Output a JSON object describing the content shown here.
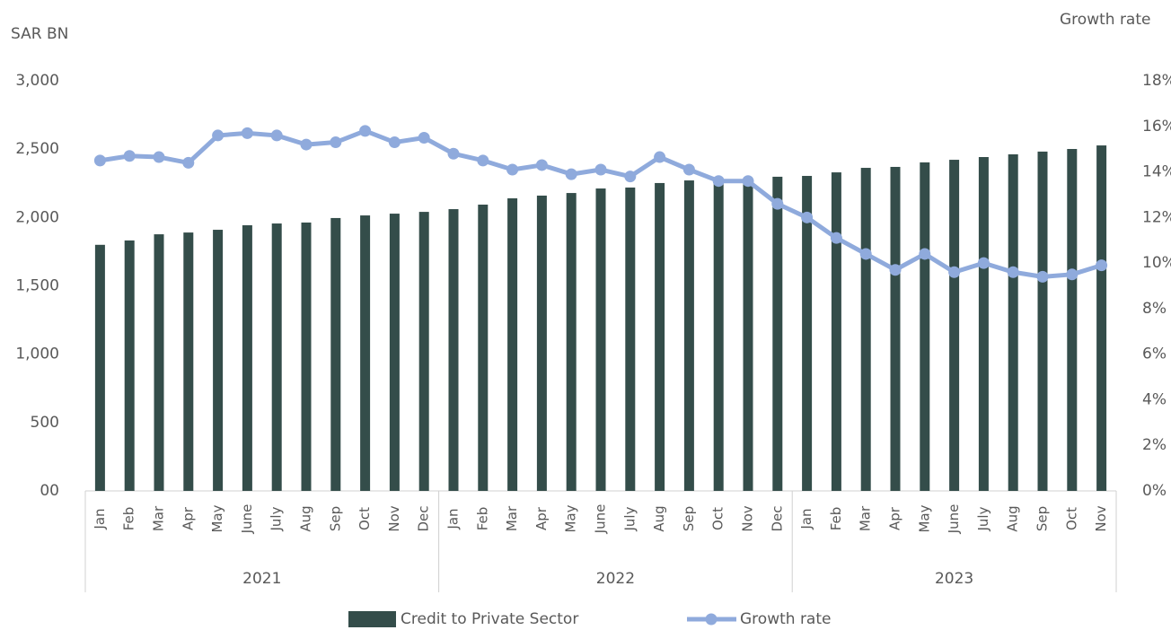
{
  "chart_data": {
    "type": "bar+line",
    "ylabel": "SAR BN",
    "y2label": "Growth rate",
    "categories": [
      "Jan",
      "Feb",
      "Mar",
      "Apr",
      "May",
      "June",
      "July",
      "Aug",
      "Sep",
      "Oct",
      "Nov",
      "Dec",
      "Jan",
      "Feb",
      "Mar",
      "Apr",
      "May",
      "June",
      "July",
      "Aug",
      "Sep",
      "Oct",
      "Nov",
      "Dec",
      "Jan",
      "Feb",
      "Mar",
      "Apr",
      "May",
      "June",
      "July",
      "Aug",
      "Sep",
      "Oct",
      "Nov"
    ],
    "year_groups": [
      "2021",
      "2022",
      "2023"
    ],
    "series": [
      {
        "name": "Credit to Private Sector",
        "type": "bar",
        "color": "#344d4a",
        "axis": "y",
        "values": [
          1800,
          1832,
          1877,
          1890,
          1910,
          1943,
          1956,
          1963,
          1996,
          2015,
          2028,
          2041,
          2061,
          2094,
          2140,
          2160,
          2179,
          2212,
          2219,
          2252,
          2271,
          2278,
          2284,
          2298,
          2304,
          2330,
          2363,
          2370,
          2403,
          2422,
          2442,
          2462,
          2482,
          2501,
          2527
        ]
      },
      {
        "name": "Growth rate",
        "type": "line",
        "color": "#8faadc",
        "axis": "y2",
        "values": [
          14.5,
          14.7,
          14.65,
          14.4,
          15.6,
          15.7,
          15.6,
          15.2,
          15.3,
          15.8,
          15.3,
          15.5,
          14.8,
          14.5,
          14.1,
          14.3,
          13.9,
          14.1,
          13.8,
          14.65,
          14.1,
          13.6,
          13.6,
          12.6,
          12.0,
          11.1,
          10.4,
          9.7,
          10.4,
          9.6,
          10.0,
          9.6,
          9.4,
          9.5,
          9.9
        ]
      }
    ],
    "ylim": [
      0,
      3000
    ],
    "yticks": [
      {
        "value": 0,
        "label": "00"
      },
      500,
      {
        "value": 1000,
        "label": "1,000"
      },
      {
        "value": 1500,
        "label": "1,500"
      },
      {
        "value": 2000,
        "label": "2,000"
      },
      {
        "value": 2500,
        "label": "2,500"
      },
      {
        "value": 3000,
        "label": "3,000"
      }
    ],
    "y2lim": [
      0,
      18
    ],
    "y2ticks": [
      {
        "value": 0,
        "label": "0%"
      },
      {
        "value": 2,
        "label": "2%"
      },
      {
        "value": 4,
        "label": "4%"
      },
      {
        "value": 6,
        "label": "6%"
      },
      {
        "value": 8,
        "label": "8%"
      },
      {
        "value": 10,
        "label": "10%"
      },
      {
        "value": 12,
        "label": "12%"
      },
      {
        "value": 14,
        "label": "14%"
      },
      {
        "value": 16,
        "label": "16%"
      },
      {
        "value": 18,
        "label": "18%"
      }
    ],
    "grid": false,
    "legend": "bottom"
  }
}
